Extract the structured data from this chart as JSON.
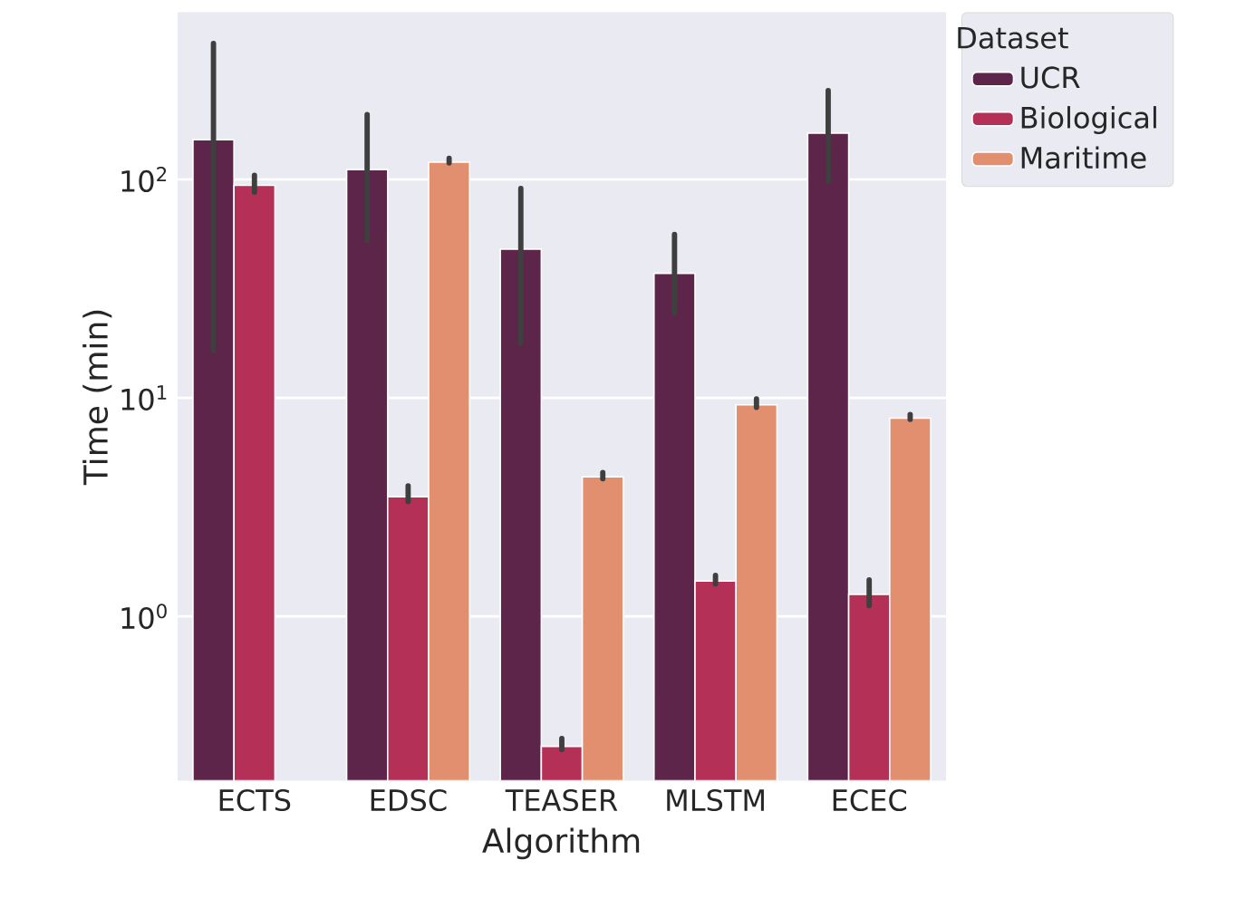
{
  "chart_data": {
    "type": "bar",
    "xlabel": "Algorithm",
    "ylabel": "Time (min)",
    "legend_title": "Dataset",
    "categories": [
      "ECTS",
      "EDSC",
      "TEASER",
      "MLSTM",
      "ECEC"
    ],
    "log": "y",
    "ylim": [
      0.177,
      583
    ],
    "yticks": [
      {
        "value": 1,
        "label": "10$^{0}$"
      },
      {
        "value": 10,
        "label": "10$^{1}$"
      },
      {
        "value": 100,
        "label": "10$^{2}$"
      }
    ],
    "grid": "y",
    "legend": "top right",
    "series": [
      {
        "name": "UCR",
        "color": "#5c2549",
        "values": [
          152,
          111,
          48,
          37.2,
          163
        ],
        "errors": [
          [
            16.5,
            419
          ],
          [
            52.5,
            198
          ],
          [
            17.8,
            91
          ],
          [
            24.4,
            56
          ],
          [
            98,
            255
          ]
        ]
      },
      {
        "name": "Biological",
        "color": "#b53056",
        "values": [
          94,
          3.53,
          0.254,
          1.45,
          1.26
        ],
        "errors": [
          [
            87.5,
            104.5
          ],
          [
            3.35,
            3.96
          ],
          [
            0.246,
            0.276
          ],
          [
            1.41,
            1.54
          ],
          [
            1.12,
            1.47
          ]
        ]
      },
      {
        "name": "Maritime",
        "color": "#e28f70",
        "values": [
          null,
          120,
          4.35,
          9.3,
          8.07
        ],
        "errors": [
          null,
          [
            119,
            125
          ],
          [
            4.27,
            4.55
          ],
          [
            9.05,
            9.9
          ],
          [
            7.98,
            8.4
          ]
        ]
      }
    ]
  }
}
